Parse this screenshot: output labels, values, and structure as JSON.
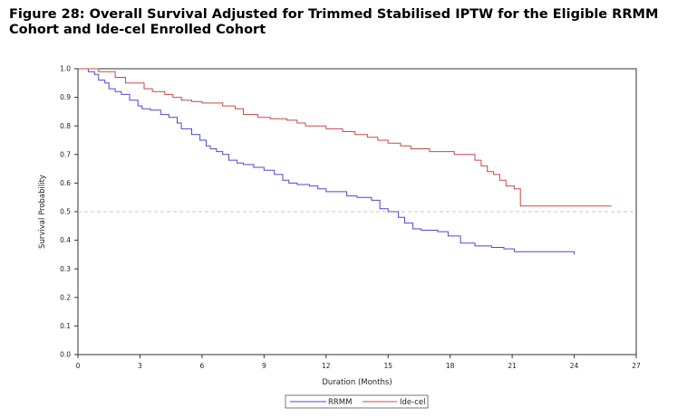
{
  "figure": {
    "title": "Figure 28: Overall Survival Adjusted for Trimmed Stabilised IPTW for the Eligible RRMM Cohort and Ide-cel Enrolled Cohort"
  },
  "chart_data": {
    "type": "line",
    "title": "Figure 28: Overall Survival Adjusted for Trimmed Stabilised IPTW for the Eligible RRMM Cohort and Ide-cel Enrolled Cohort",
    "xlabel": "Duration (Months)",
    "ylabel": "Survival Probability",
    "xlim": [
      0,
      27
    ],
    "ylim": [
      0,
      1
    ],
    "xticks": [
      0,
      3,
      6,
      9,
      12,
      15,
      18,
      21,
      24,
      27
    ],
    "yticks": [
      0.0,
      0.1,
      0.2,
      0.3,
      0.4,
      0.5,
      0.6,
      0.7,
      0.8,
      0.9,
      1.0
    ],
    "ytick_labels": [
      "0.0",
      "0.1",
      "0.2",
      "0.3",
      "0.4",
      "0.5",
      "0.6",
      "0.7",
      "0.8",
      "0.9",
      "1.0"
    ],
    "reference_line": {
      "y": 0.5,
      "style": "dashed"
    },
    "grid": false,
    "legend_position": "bottom-center",
    "series": [
      {
        "name": "RRMM",
        "color": "#4a4ad0",
        "step": true,
        "x": [
          0,
          0.5,
          0.8,
          1.0,
          1.3,
          1.5,
          1.8,
          2.1,
          2.5,
          2.9,
          3.1,
          3.5,
          4.0,
          4.4,
          4.8,
          5.0,
          5.5,
          5.9,
          6.2,
          6.4,
          6.7,
          7.0,
          7.3,
          7.7,
          8.0,
          8.5,
          9.0,
          9.5,
          9.9,
          10.2,
          10.6,
          11.2,
          11.6,
          12.0,
          13.0,
          13.5,
          14.2,
          14.6,
          15.0,
          15.5,
          15.8,
          16.2,
          16.6,
          17.4,
          17.9,
          18.5,
          19.2,
          20.0,
          20.6,
          21.1,
          24.0
        ],
        "y": [
          1.0,
          0.99,
          0.98,
          0.96,
          0.95,
          0.93,
          0.92,
          0.91,
          0.89,
          0.87,
          0.86,
          0.855,
          0.84,
          0.83,
          0.81,
          0.79,
          0.77,
          0.75,
          0.73,
          0.72,
          0.71,
          0.7,
          0.68,
          0.67,
          0.665,
          0.655,
          0.645,
          0.63,
          0.61,
          0.6,
          0.595,
          0.59,
          0.58,
          0.57,
          0.555,
          0.55,
          0.54,
          0.51,
          0.5,
          0.48,
          0.46,
          0.44,
          0.435,
          0.43,
          0.415,
          0.39,
          0.38,
          0.375,
          0.37,
          0.36,
          0.35
        ],
        "end_x": 24.0
      },
      {
        "name": "Ide-cel",
        "color": "#c84848",
        "step": true,
        "x": [
          0,
          1.0,
          1.8,
          2.3,
          3.2,
          3.6,
          4.2,
          4.6,
          5.0,
          5.5,
          6.0,
          7.0,
          7.6,
          8.0,
          8.7,
          9.3,
          10.1,
          10.6,
          11.0,
          12.0,
          12.8,
          13.4,
          14.0,
          14.5,
          15.0,
          15.6,
          16.1,
          17.0,
          18.2,
          19.2,
          19.5,
          19.8,
          20.1,
          20.4,
          20.7,
          21.1,
          21.4
        ],
        "y": [
          1.0,
          0.99,
          0.97,
          0.95,
          0.93,
          0.92,
          0.91,
          0.9,
          0.89,
          0.885,
          0.88,
          0.87,
          0.86,
          0.84,
          0.83,
          0.825,
          0.82,
          0.81,
          0.8,
          0.79,
          0.78,
          0.77,
          0.76,
          0.75,
          0.74,
          0.73,
          0.72,
          0.71,
          0.7,
          0.68,
          0.66,
          0.64,
          0.63,
          0.61,
          0.59,
          0.58,
          0.52
        ],
        "end_x": 25.8
      }
    ]
  }
}
